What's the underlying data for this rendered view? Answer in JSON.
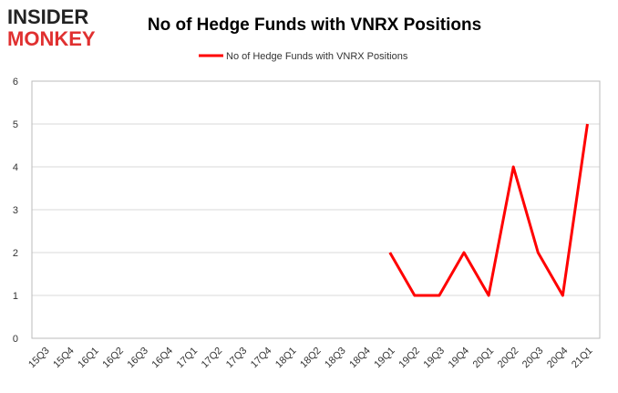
{
  "logo": {
    "line1": "INSIDER",
    "line2": "MONKEY"
  },
  "chart_data": {
    "type": "line",
    "title": "No of Hedge Funds with VNRX Positions",
    "categories": [
      "15Q3",
      "15Q4",
      "16Q1",
      "16Q2",
      "16Q3",
      "16Q4",
      "17Q1",
      "17Q2",
      "17Q3",
      "17Q4",
      "18Q1",
      "18Q2",
      "18Q3",
      "18Q4",
      "19Q1",
      "19Q2",
      "19Q3",
      "19Q4",
      "20Q1",
      "20Q2",
      "20Q3",
      "20Q4",
      "21Q1"
    ],
    "series": [
      {
        "name": "No of Hedge Funds with VNRX Positions",
        "color": "#ff0000",
        "values": [
          null,
          null,
          null,
          null,
          null,
          null,
          null,
          null,
          null,
          null,
          null,
          null,
          null,
          null,
          2,
          1,
          1,
          2,
          1,
          4,
          2,
          1,
          5
        ]
      }
    ],
    "ylim": [
      0,
      6
    ],
    "yticks": [
      0,
      1,
      2,
      3,
      4,
      5,
      6
    ],
    "grid": true,
    "legend": "top"
  }
}
